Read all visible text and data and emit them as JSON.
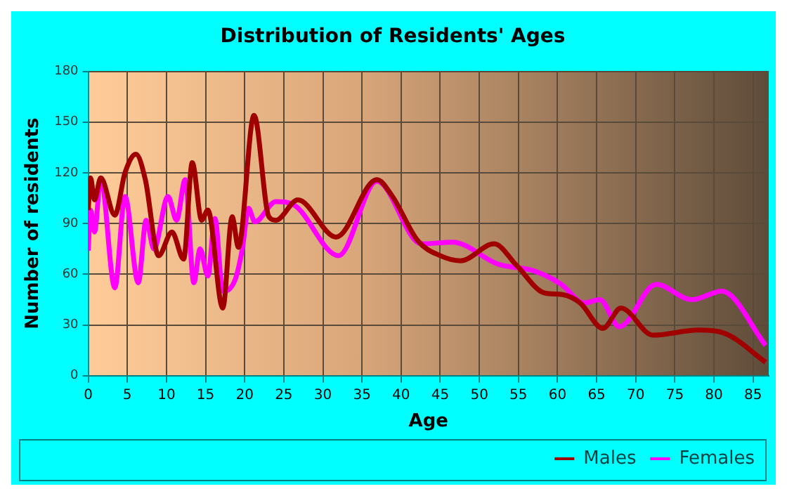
{
  "chart_data": {
    "type": "line",
    "title": "Distribution of Residents' Ages",
    "xlabel": "Age",
    "ylabel": "Number of residents",
    "xlim": [
      0,
      87
    ],
    "xticks": [
      0,
      5,
      10,
      15,
      20,
      25,
      30,
      35,
      40,
      45,
      50,
      55,
      60,
      65,
      70,
      75,
      80,
      85
    ],
    "ylim": [
      0,
      180
    ],
    "yticks": [
      0,
      30,
      60,
      90,
      120,
      150,
      180
    ],
    "grid": true,
    "legend": "bottom right",
    "marker": "none",
    "line_style": "solid",
    "series": [
      {
        "name": "Males",
        "color": "#a00000",
        "x": [
          0,
          0.3,
          0.8,
          1.6,
          3.4,
          4.7,
          6.1,
          7.3,
          9,
          10.7,
          12.2,
          13.3,
          14.5,
          15.3,
          17.2,
          18.4,
          19.2,
          21.2,
          23.1,
          24,
          26.8,
          31.7,
          36.9,
          38.9,
          42.1,
          45,
          47.6,
          51.9,
          54.8,
          58.3,
          60.6,
          62.9,
          65.8,
          68.1,
          72.2,
          78,
          81.4,
          86.6
        ],
        "values": [
          98,
          117,
          104,
          117,
          95,
          120,
          131,
          116,
          71,
          85,
          69,
          126,
          92,
          98,
          40,
          94,
          76,
          154,
          94,
          92,
          104,
          82,
          116,
          106,
          80,
          71,
          68,
          78,
          65,
          49,
          48,
          43,
          28,
          40,
          24,
          27,
          25,
          8
        ]
      },
      {
        "name": "Females",
        "color": "#ff00ff",
        "x": [
          0,
          0.3,
          0.8,
          1.6,
          3.4,
          4.7,
          6.4,
          7.4,
          8.4,
          10.2,
          11.3,
          12.4,
          13.5,
          14.3,
          15.3,
          16.2,
          17.2,
          18.8,
          19.7,
          20.5,
          21.3,
          24,
          26.3,
          32,
          36.9,
          42.6,
          46.6,
          52.4,
          57,
          60.5,
          63.4,
          65.4,
          67.9,
          72.6,
          77.2,
          81,
          86.6
        ],
        "values": [
          74,
          98,
          85,
          117,
          52,
          106,
          55,
          92,
          75,
          106,
          92,
          116,
          55,
          75,
          59,
          93,
          50,
          57,
          75,
          99,
          91,
          103,
          101,
          71,
          115,
          78,
          79,
          66,
          62,
          54,
          43,
          45,
          29,
          54,
          45,
          50,
          18
        ]
      }
    ]
  }
}
